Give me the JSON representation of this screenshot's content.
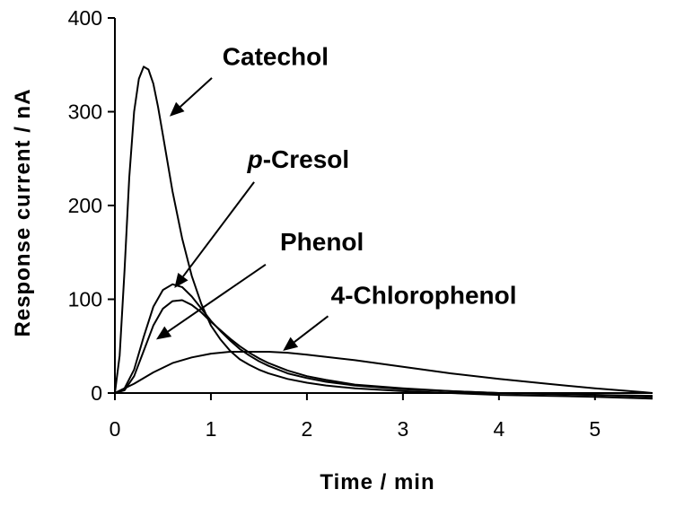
{
  "chart_data": {
    "type": "line",
    "xlabel": "Time / min",
    "ylabel": "Response current / nA",
    "xlim": [
      0,
      5.6
    ],
    "ylim": [
      0,
      400
    ],
    "xticks": [
      0,
      1,
      2,
      3,
      4,
      5
    ],
    "yticks": [
      0,
      100,
      200,
      300,
      400
    ],
    "grid": false,
    "legend": "none",
    "series": [
      {
        "name": "Catechol",
        "x": [
          0,
          0.05,
          0.1,
          0.15,
          0.2,
          0.25,
          0.3,
          0.35,
          0.4,
          0.45,
          0.5,
          0.6,
          0.7,
          0.8,
          0.9,
          1.0,
          1.1,
          1.2,
          1.3,
          1.4,
          1.5,
          1.6,
          1.8,
          2.0,
          2.2,
          2.5,
          3.0,
          3.5,
          4.0,
          4.5,
          5.0,
          5.6
        ],
        "y": [
          0,
          40,
          130,
          230,
          300,
          335,
          348,
          345,
          330,
          305,
          275,
          215,
          165,
          125,
          95,
          72,
          57,
          45,
          36,
          30,
          25,
          21,
          15,
          11,
          8,
          5,
          2,
          0,
          -2,
          -3,
          -4,
          -6
        ]
      },
      {
        "name": "p-Cresol",
        "x": [
          0,
          0.1,
          0.2,
          0.3,
          0.4,
          0.5,
          0.6,
          0.7,
          0.8,
          0.9,
          1.0,
          1.1,
          1.2,
          1.3,
          1.4,
          1.5,
          1.6,
          1.8,
          2.0,
          2.2,
          2.5,
          3.0,
          3.5,
          4.0,
          4.5,
          5.0,
          5.6
        ],
        "y": [
          0,
          5,
          25,
          60,
          92,
          110,
          116,
          113,
          103,
          90,
          77,
          66,
          56,
          47,
          40,
          34,
          29,
          21,
          16,
          12,
          8,
          4,
          2,
          0,
          -1,
          -2,
          -3
        ]
      },
      {
        "name": "Phenol",
        "x": [
          0,
          0.1,
          0.2,
          0.3,
          0.4,
          0.5,
          0.6,
          0.7,
          0.8,
          0.9,
          1.0,
          1.1,
          1.2,
          1.3,
          1.4,
          1.5,
          1.6,
          1.8,
          2.0,
          2.2,
          2.5,
          3.0,
          3.5,
          4.0,
          4.5,
          5.0,
          5.6
        ],
        "y": [
          0,
          3,
          18,
          45,
          72,
          90,
          98,
          99,
          94,
          86,
          76,
          67,
          58,
          50,
          43,
          37,
          32,
          24,
          18,
          14,
          9,
          5,
          2,
          0,
          -1,
          -2,
          -4
        ]
      },
      {
        "name": "4-Chlorophenol",
        "x": [
          0,
          0.2,
          0.4,
          0.6,
          0.8,
          1.0,
          1.2,
          1.4,
          1.6,
          1.8,
          2.0,
          2.5,
          3.0,
          3.5,
          4.0,
          4.5,
          5.0,
          5.5,
          5.6
        ],
        "y": [
          0,
          10,
          22,
          32,
          38,
          42,
          44,
          44,
          44,
          43,
          41,
          35,
          28,
          21,
          15,
          10,
          5,
          1,
          0
        ]
      }
    ],
    "annotations": [
      {
        "text": "Catechol",
        "italic_prefix": "",
        "rest": "Catechol",
        "target": [
          0.57,
          295
        ],
        "arrow_from": [
          1.01,
          336
        ],
        "label_pos": [
          1.12,
          350
        ]
      },
      {
        "text": "p-Cresol",
        "italic_prefix": "p",
        "rest": "-Cresol",
        "target": [
          0.62,
          112
        ],
        "arrow_from": [
          1.45,
          225
        ],
        "label_pos": [
          1.38,
          240
        ]
      },
      {
        "text": "Phenol",
        "italic_prefix": "",
        "rest": "Phenol",
        "target": [
          0.43,
          57
        ],
        "arrow_from": [
          1.57,
          137
        ],
        "label_pos": [
          1.72,
          152
        ]
      },
      {
        "text": "4-Chlorophenol",
        "italic_prefix": "",
        "rest": "4-Chlorophenol",
        "target": [
          1.75,
          45
        ],
        "arrow_from": [
          2.22,
          82
        ],
        "label_pos": [
          2.25,
          95
        ]
      }
    ]
  }
}
